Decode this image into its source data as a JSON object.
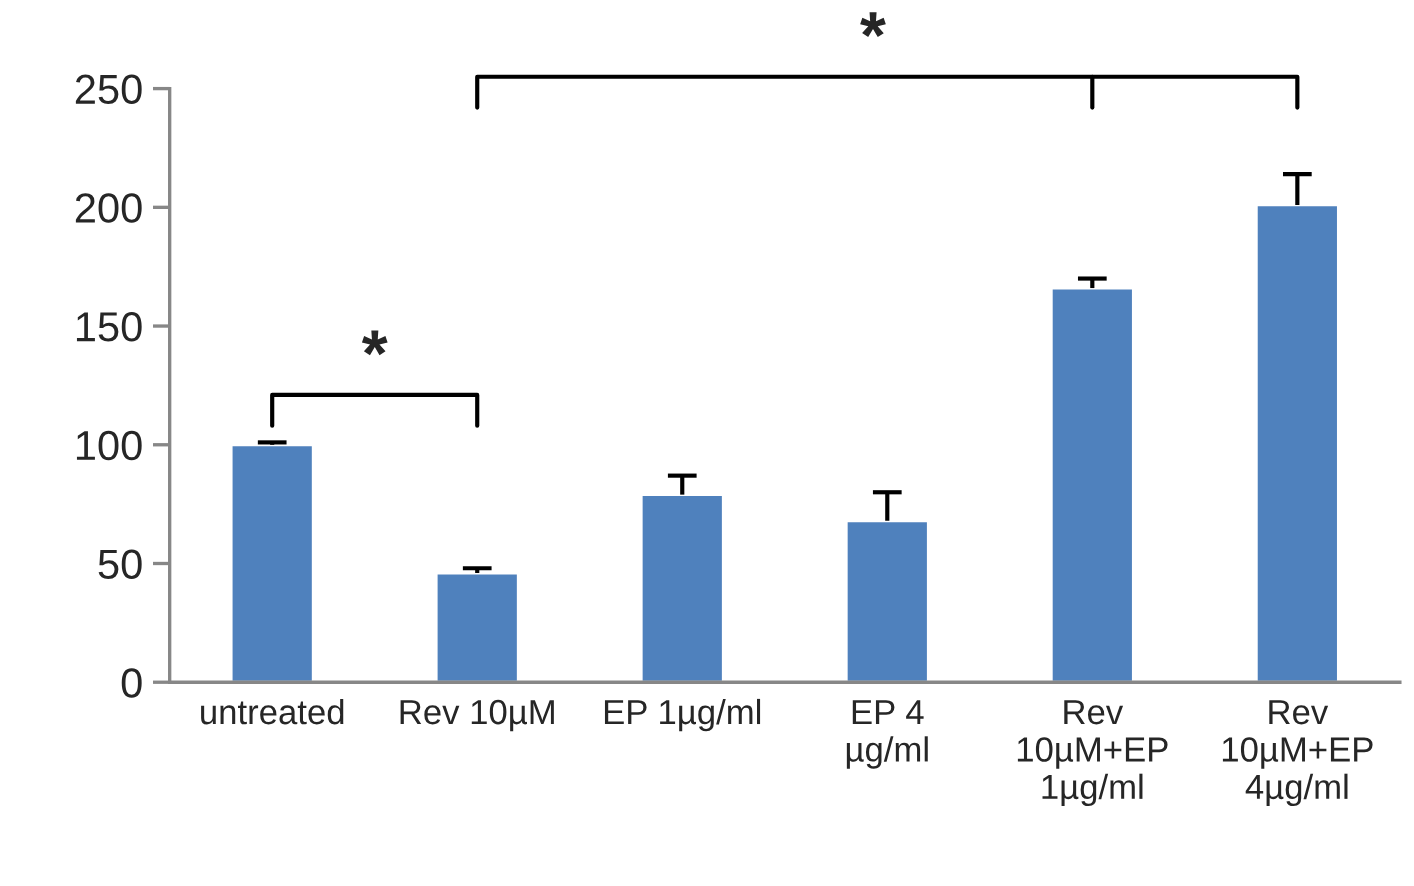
{
  "chart_data": {
    "type": "bar",
    "categories": [
      "untreated",
      "Rev 10µM",
      "EP 1µg/ml",
      "EP 4\nµg/ml",
      "Rev\n10µM+EP\n1µg/ml",
      "Rev\n10µM+EP\n4µg/ml"
    ],
    "values": [
      100,
      46,
      79,
      68,
      166,
      201
    ],
    "errors": [
      [
        100,
        101
      ],
      [
        46,
        48
      ],
      [
        79,
        87
      ],
      [
        68,
        80
      ],
      [
        166,
        170
      ],
      [
        201,
        214
      ]
    ],
    "color": "#4f81bd",
    "ylim": [
      0,
      250
    ],
    "yticks": [
      0,
      50,
      100,
      150,
      200,
      250
    ],
    "grid": false,
    "annotations": [
      "*",
      "*"
    ]
  }
}
